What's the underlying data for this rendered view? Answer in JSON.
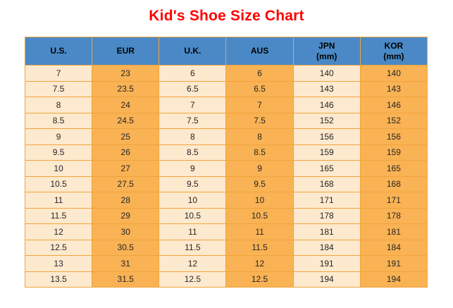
{
  "page": {
    "title": "Kid's Shoe Size Chart"
  },
  "colors": {
    "title": "#FF0000",
    "header_bg": "#4A89C6",
    "col_light": "#FDE9CE",
    "col_orange": "#F9B254",
    "border": "#F0A43C",
    "cell_text": "#262626"
  },
  "table": {
    "columns": [
      {
        "label": "U.S.",
        "sub": ""
      },
      {
        "label": "EUR",
        "sub": ""
      },
      {
        "label": "U.K.",
        "sub": ""
      },
      {
        "label": "AUS",
        "sub": ""
      },
      {
        "label": "JPN",
        "sub": "(mm)"
      },
      {
        "label": "KOR",
        "sub": "(mm)"
      }
    ],
    "rows": [
      [
        "7",
        "23",
        "6",
        "6",
        "140",
        "140"
      ],
      [
        "7.5",
        "23.5",
        "6.5",
        "6.5",
        "143",
        "143"
      ],
      [
        "8",
        "24",
        "7",
        "7",
        "146",
        "146"
      ],
      [
        "8.5",
        "24.5",
        "7.5",
        "7.5",
        "152",
        "152"
      ],
      [
        "9",
        "25",
        "8",
        "8",
        "156",
        "156"
      ],
      [
        "9.5",
        "26",
        "8.5",
        "8.5",
        "159",
        "159"
      ],
      [
        "10",
        "27",
        "9",
        "9",
        "165",
        "165"
      ],
      [
        "10.5",
        "27.5",
        "9.5",
        "9.5",
        "168",
        "168"
      ],
      [
        "11",
        "28",
        "10",
        "10",
        "171",
        "171"
      ],
      [
        "11.5",
        "29",
        "10.5",
        "10.5",
        "178",
        "178"
      ],
      [
        "12",
        "30",
        "11",
        "11",
        "181",
        "181"
      ],
      [
        "12.5",
        "30.5",
        "11.5",
        "11.5",
        "184",
        "184"
      ],
      [
        "13",
        "31",
        "12",
        "12",
        "191",
        "191"
      ],
      [
        "13.5",
        "31.5",
        "12.5",
        "12.5",
        "194",
        "194"
      ]
    ]
  },
  "chart_data": {
    "type": "table",
    "title": "Kid's Shoe Size Chart",
    "columns": [
      "U.S.",
      "EUR",
      "U.K.",
      "AUS",
      "JPN (mm)",
      "KOR (mm)"
    ],
    "rows": [
      [
        7,
        23,
        6,
        6,
        140,
        140
      ],
      [
        7.5,
        23.5,
        6.5,
        6.5,
        143,
        143
      ],
      [
        8,
        24,
        7,
        7,
        146,
        146
      ],
      [
        8.5,
        24.5,
        7.5,
        7.5,
        152,
        152
      ],
      [
        9,
        25,
        8,
        8,
        156,
        156
      ],
      [
        9.5,
        26,
        8.5,
        8.5,
        159,
        159
      ],
      [
        10,
        27,
        9,
        9,
        165,
        165
      ],
      [
        10.5,
        27.5,
        9.5,
        9.5,
        168,
        168
      ],
      [
        11,
        28,
        10,
        10,
        171,
        171
      ],
      [
        11.5,
        29,
        10.5,
        10.5,
        178,
        178
      ],
      [
        12,
        30,
        11,
        11,
        181,
        181
      ],
      [
        12.5,
        30.5,
        11.5,
        11.5,
        184,
        184
      ],
      [
        13,
        31,
        12,
        12,
        191,
        191
      ],
      [
        13.5,
        31.5,
        12.5,
        12.5,
        194,
        194
      ]
    ],
    "layout": {
      "column_fill_alternation": [
        "light",
        "orange"
      ],
      "header_fill": "blue",
      "grid": true
    }
  }
}
